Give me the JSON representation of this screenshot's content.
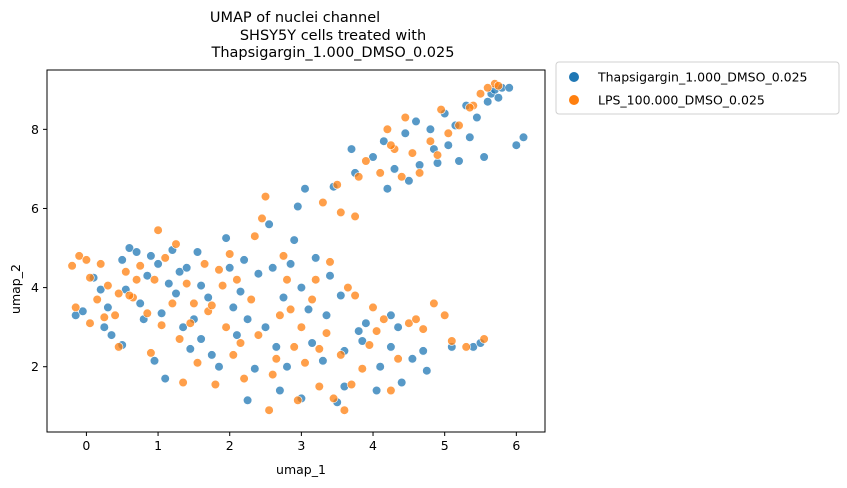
{
  "chart_data": {
    "type": "scatter",
    "title_lines": [
      "UMAP of nuclei channel",
      "SHSY5Y cells treated with",
      "Thapsigargin_1.000_DMSO_0.025"
    ],
    "xlabel": "umap_1",
    "ylabel": "umap_2",
    "xlim": [
      -0.55,
      6.4
    ],
    "ylim": [
      0.35,
      9.5
    ],
    "xticks": [
      0,
      1,
      2,
      3,
      4,
      5,
      6
    ],
    "yticks": [
      2,
      4,
      6,
      8
    ],
    "grid": false,
    "legend_position": "outside-top-right",
    "series": [
      {
        "name": "Thapsigargin_1.000_DMSO_0.025",
        "color": "#1f77b4",
        "points": [
          [
            -0.15,
            3.3
          ],
          [
            -0.05,
            3.4
          ],
          [
            0.1,
            4.25
          ],
          [
            0.2,
            3.95
          ],
          [
            0.25,
            3.0
          ],
          [
            0.3,
            3.5
          ],
          [
            0.35,
            2.8
          ],
          [
            0.5,
            4.7
          ],
          [
            0.5,
            2.55
          ],
          [
            0.55,
            3.95
          ],
          [
            0.6,
            5.0
          ],
          [
            0.7,
            4.9
          ],
          [
            0.75,
            3.6
          ],
          [
            0.8,
            3.2
          ],
          [
            0.85,
            4.3
          ],
          [
            0.9,
            4.8
          ],
          [
            1.0,
            4.6
          ],
          [
            1.05,
            3.35
          ],
          [
            1.15,
            4.1
          ],
          [
            1.2,
            4.95
          ],
          [
            1.25,
            3.85
          ],
          [
            1.3,
            4.4
          ],
          [
            1.35,
            3.0
          ],
          [
            1.4,
            4.5
          ],
          [
            1.45,
            2.45
          ],
          [
            1.5,
            3.2
          ],
          [
            1.55,
            4.9
          ],
          [
            1.6,
            4.05
          ],
          [
            1.7,
            3.75
          ],
          [
            1.75,
            2.3
          ],
          [
            1.85,
            2.0
          ],
          [
            1.95,
            5.25
          ],
          [
            2.0,
            4.5
          ],
          [
            2.05,
            3.5
          ],
          [
            2.1,
            2.8
          ],
          [
            2.15,
            3.9
          ],
          [
            2.2,
            4.7
          ],
          [
            2.25,
            3.2
          ],
          [
            2.35,
            1.95
          ],
          [
            2.4,
            4.35
          ],
          [
            2.5,
            3.0
          ],
          [
            2.55,
            5.6
          ],
          [
            2.6,
            4.5
          ],
          [
            2.65,
            2.5
          ],
          [
            2.75,
            3.75
          ],
          [
            2.85,
            4.6
          ],
          [
            2.9,
            5.2
          ],
          [
            2.95,
            6.05
          ],
          [
            3.0,
            4.0
          ],
          [
            3.05,
            6.5
          ],
          [
            3.1,
            3.45
          ],
          [
            3.15,
            2.6
          ],
          [
            3.2,
            4.75
          ],
          [
            3.3,
            2.15
          ],
          [
            3.35,
            3.3
          ],
          [
            3.4,
            4.3
          ],
          [
            3.45,
            6.55
          ],
          [
            3.5,
            1.1
          ],
          [
            3.55,
            3.8
          ],
          [
            3.6,
            2.4
          ],
          [
            3.7,
            7.5
          ],
          [
            3.75,
            6.9
          ],
          [
            3.8,
            2.9
          ],
          [
            3.9,
            3.1
          ],
          [
            4.0,
            7.3
          ],
          [
            4.05,
            1.4
          ],
          [
            4.1,
            2.0
          ],
          [
            4.15,
            7.7
          ],
          [
            4.2,
            6.5
          ],
          [
            4.25,
            2.5
          ],
          [
            4.3,
            7.0
          ],
          [
            4.35,
            3.0
          ],
          [
            4.4,
            1.6
          ],
          [
            4.45,
            7.9
          ],
          [
            4.5,
            6.7
          ],
          [
            4.6,
            8.2
          ],
          [
            4.65,
            7.1
          ],
          [
            4.7,
            2.4
          ],
          [
            4.75,
            1.9
          ],
          [
            4.8,
            8.0
          ],
          [
            4.85,
            7.5
          ],
          [
            4.9,
            7.15
          ],
          [
            5.0,
            8.4
          ],
          [
            5.05,
            7.6
          ],
          [
            5.1,
            2.5
          ],
          [
            5.15,
            8.1
          ],
          [
            5.2,
            7.2
          ],
          [
            5.3,
            8.6
          ],
          [
            5.35,
            7.8
          ],
          [
            5.4,
            2.5
          ],
          [
            5.45,
            8.3
          ],
          [
            5.5,
            2.6
          ],
          [
            5.55,
            7.3
          ],
          [
            5.6,
            8.7
          ],
          [
            5.65,
            8.9
          ],
          [
            5.7,
            9.0
          ],
          [
            5.75,
            8.8
          ],
          [
            5.8,
            9.05
          ],
          [
            5.9,
            9.05
          ],
          [
            6.0,
            7.6
          ],
          [
            6.1,
            7.8
          ],
          [
            0.95,
            2.15
          ],
          [
            1.1,
            1.7
          ],
          [
            1.6,
            2.7
          ],
          [
            2.25,
            1.15
          ],
          [
            2.7,
            1.4
          ],
          [
            3.0,
            1.2
          ],
          [
            3.6,
            1.5
          ],
          [
            3.85,
            2.65
          ],
          [
            4.25,
            3.3
          ],
          [
            4.55,
            2.2
          ],
          [
            2.8,
            2.0
          ]
        ]
      },
      {
        "name": "LPS_100.000_DMSO_0.025",
        "color": "#ff7f0e",
        "points": [
          [
            -0.2,
            4.55
          ],
          [
            -0.15,
            3.5
          ],
          [
            -0.1,
            4.8
          ],
          [
            0.0,
            4.7
          ],
          [
            0.05,
            3.1
          ],
          [
            0.15,
            3.7
          ],
          [
            0.2,
            4.6
          ],
          [
            0.3,
            4.05
          ],
          [
            0.4,
            3.3
          ],
          [
            0.45,
            3.85
          ],
          [
            0.55,
            4.4
          ],
          [
            0.65,
            3.75
          ],
          [
            0.75,
            4.55
          ],
          [
            0.85,
            3.35
          ],
          [
            0.95,
            4.2
          ],
          [
            1.0,
            5.45
          ],
          [
            1.05,
            3.05
          ],
          [
            1.1,
            4.75
          ],
          [
            1.2,
            3.6
          ],
          [
            1.3,
            2.7
          ],
          [
            1.4,
            4.1
          ],
          [
            1.45,
            3.1
          ],
          [
            1.55,
            2.1
          ],
          [
            1.65,
            4.6
          ],
          [
            1.7,
            3.4
          ],
          [
            1.8,
            1.55
          ],
          [
            1.9,
            4.05
          ],
          [
            1.95,
            3.0
          ],
          [
            2.05,
            2.3
          ],
          [
            2.1,
            4.2
          ],
          [
            2.2,
            1.7
          ],
          [
            2.3,
            3.7
          ],
          [
            2.4,
            2.8
          ],
          [
            2.45,
            5.75
          ],
          [
            2.5,
            6.3
          ],
          [
            2.55,
            0.9
          ],
          [
            2.6,
            1.8
          ],
          [
            2.7,
            3.3
          ],
          [
            2.8,
            4.2
          ],
          [
            2.9,
            2.5
          ],
          [
            3.0,
            3.0
          ],
          [
            3.05,
            2.1
          ],
          [
            3.15,
            3.7
          ],
          [
            3.25,
            1.5
          ],
          [
            3.3,
            6.15
          ],
          [
            3.35,
            2.85
          ],
          [
            3.4,
            4.65
          ],
          [
            3.5,
            6.6
          ],
          [
            3.55,
            2.3
          ],
          [
            3.6,
            0.9
          ],
          [
            3.7,
            1.55
          ],
          [
            3.75,
            5.8
          ],
          [
            3.8,
            6.8
          ],
          [
            3.85,
            1.95
          ],
          [
            3.9,
            7.2
          ],
          [
            4.0,
            3.5
          ],
          [
            4.05,
            2.9
          ],
          [
            4.1,
            6.9
          ],
          [
            4.2,
            8.0
          ],
          [
            4.25,
            1.4
          ],
          [
            4.3,
            7.5
          ],
          [
            4.35,
            2.2
          ],
          [
            4.4,
            6.8
          ],
          [
            4.45,
            8.3
          ],
          [
            4.5,
            3.1
          ],
          [
            4.55,
            7.4
          ],
          [
            4.65,
            6.9
          ],
          [
            4.7,
            2.95
          ],
          [
            4.8,
            7.7
          ],
          [
            4.85,
            3.6
          ],
          [
            4.95,
            8.5
          ],
          [
            5.05,
            7.9
          ],
          [
            5.1,
            2.65
          ],
          [
            5.2,
            8.1
          ],
          [
            5.3,
            2.5
          ],
          [
            5.4,
            8.6
          ],
          [
            5.5,
            8.9
          ],
          [
            5.55,
            2.7
          ],
          [
            5.7,
            9.15
          ],
          [
            5.75,
            9.1
          ],
          [
            0.05,
            4.25
          ],
          [
            0.45,
            2.5
          ],
          [
            0.9,
            2.35
          ],
          [
            1.35,
            1.6
          ],
          [
            1.75,
            3.55
          ],
          [
            2.15,
            2.6
          ],
          [
            2.35,
            5.3
          ],
          [
            2.65,
            2.2
          ],
          [
            2.95,
            1.15
          ],
          [
            3.2,
            4.2
          ],
          [
            3.45,
            1.2
          ],
          [
            3.65,
            4.0
          ],
          [
            3.95,
            2.55
          ],
          [
            4.15,
            3.2
          ],
          [
            4.6,
            3.2
          ],
          [
            5.0,
            3.3
          ],
          [
            0.25,
            3.25
          ],
          [
            0.6,
            3.8
          ],
          [
            1.25,
            5.1
          ],
          [
            1.85,
            4.45
          ],
          [
            2.75,
            4.8
          ],
          [
            3.25,
            2.45
          ],
          [
            3.75,
            3.8
          ],
          [
            4.25,
            7.6
          ],
          [
            4.9,
            7.35
          ],
          [
            5.35,
            8.55
          ],
          [
            5.6,
            9.05
          ],
          [
            1.5,
            3.6
          ],
          [
            2.0,
            4.85
          ],
          [
            2.85,
            3.45
          ],
          [
            3.55,
            5.9
          ],
          [
            0.7,
            4.2
          ]
        ]
      }
    ]
  }
}
